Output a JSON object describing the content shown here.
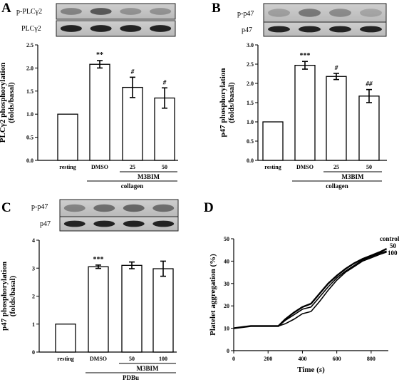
{
  "panels": {
    "A": {
      "letter": "A",
      "blot_top": "p-PLCγ2",
      "blot_bottom": "PLCγ2"
    },
    "B": {
      "letter": "B",
      "blot_top": "p-p47",
      "blot_bottom": "p47"
    },
    "C": {
      "letter": "C",
      "blot_top": "p-p47",
      "blot_bottom": "p47"
    },
    "D": {
      "letter": "D"
    }
  },
  "chart_data": [
    {
      "panel": "A",
      "type": "bar",
      "categories": [
        "resting",
        "DMSO",
        "25",
        "50"
      ],
      "values": [
        1.0,
        2.08,
        1.58,
        1.35
      ],
      "errors": [
        0,
        0.08,
        0.22,
        0.22
      ],
      "significance": [
        "",
        "**",
        "#",
        "#"
      ],
      "ylabel": "PLCγ2 phosphorylation\n(folds/basal)",
      "ylim": [
        0,
        2.5
      ],
      "yticks": [
        "0.0",
        "0.5",
        "1.0",
        "1.5",
        "2.0",
        "2.5"
      ],
      "group_inner": "M3BIM",
      "group_outer": "collagen"
    },
    {
      "panel": "B",
      "type": "bar",
      "categories": [
        "resting",
        "DMSO",
        "25",
        "50"
      ],
      "values": [
        1.0,
        2.47,
        2.18,
        1.67
      ],
      "errors": [
        0,
        0.1,
        0.08,
        0.17
      ],
      "significance": [
        "",
        "***",
        "#",
        "##"
      ],
      "ylabel": "p47 phosphorylation\n(folds/basal)",
      "ylim": [
        0,
        3.0
      ],
      "yticks": [
        "0.0",
        "0.5",
        "1.0",
        "1.5",
        "2.0",
        "2.5",
        "3.0"
      ],
      "group_inner": "M3BIM",
      "group_outer": "collagen"
    },
    {
      "panel": "C",
      "type": "bar",
      "categories": [
        "resting",
        "DMSO",
        "50",
        "100"
      ],
      "values": [
        1.0,
        3.05,
        3.1,
        2.98
      ],
      "errors": [
        0,
        0.06,
        0.12,
        0.27
      ],
      "significance": [
        "",
        "***",
        "",
        ""
      ],
      "ylabel": "p47 phosphorylation\n(folds/basal)",
      "ylim": [
        0,
        4
      ],
      "yticks": [
        "0",
        "1",
        "2",
        "3",
        "4"
      ],
      "group_inner": "M3BIM",
      "group_outer": "PDBu"
    },
    {
      "panel": "D",
      "type": "line",
      "xlabel": "Time (s)",
      "ylabel": "Platelet aggregation (%)",
      "xlim": [
        0,
        900
      ],
      "ylim": [
        0,
        50
      ],
      "xticks": [
        "0",
        "200",
        "400",
        "600",
        "800"
      ],
      "yticks": [
        "0",
        "10",
        "20",
        "30",
        "40",
        "50"
      ],
      "series": [
        {
          "name": "control",
          "x": [
            0,
            50,
            100,
            200,
            260,
            300,
            350,
            400,
            450,
            500,
            550,
            600,
            650,
            700,
            750,
            800,
            850,
            890
          ],
          "y": [
            10,
            10.5,
            11,
            11,
            11,
            14,
            17,
            19.5,
            21,
            25.5,
            30,
            33.5,
            36.5,
            39,
            41,
            42.5,
            44,
            45.5
          ]
        },
        {
          "name": "50",
          "x": [
            0,
            50,
            100,
            200,
            260,
            300,
            350,
            400,
            450,
            500,
            550,
            600,
            650,
            700,
            750,
            800,
            850,
            890
          ],
          "y": [
            10,
            10.5,
            11,
            11,
            11,
            13.5,
            16,
            18.5,
            19.5,
            24,
            28.5,
            32.5,
            35.5,
            38,
            40.5,
            42,
            43.5,
            44.5
          ]
        },
        {
          "name": "100",
          "x": [
            0,
            50,
            100,
            200,
            260,
            300,
            350,
            400,
            450,
            500,
            550,
            600,
            650,
            700,
            750,
            800,
            850,
            890
          ],
          "y": [
            10,
            10.5,
            11,
            11,
            11,
            12,
            14,
            16.5,
            17.5,
            22,
            27,
            31.5,
            35,
            37.5,
            40,
            41.5,
            43,
            44
          ]
        }
      ]
    }
  ]
}
